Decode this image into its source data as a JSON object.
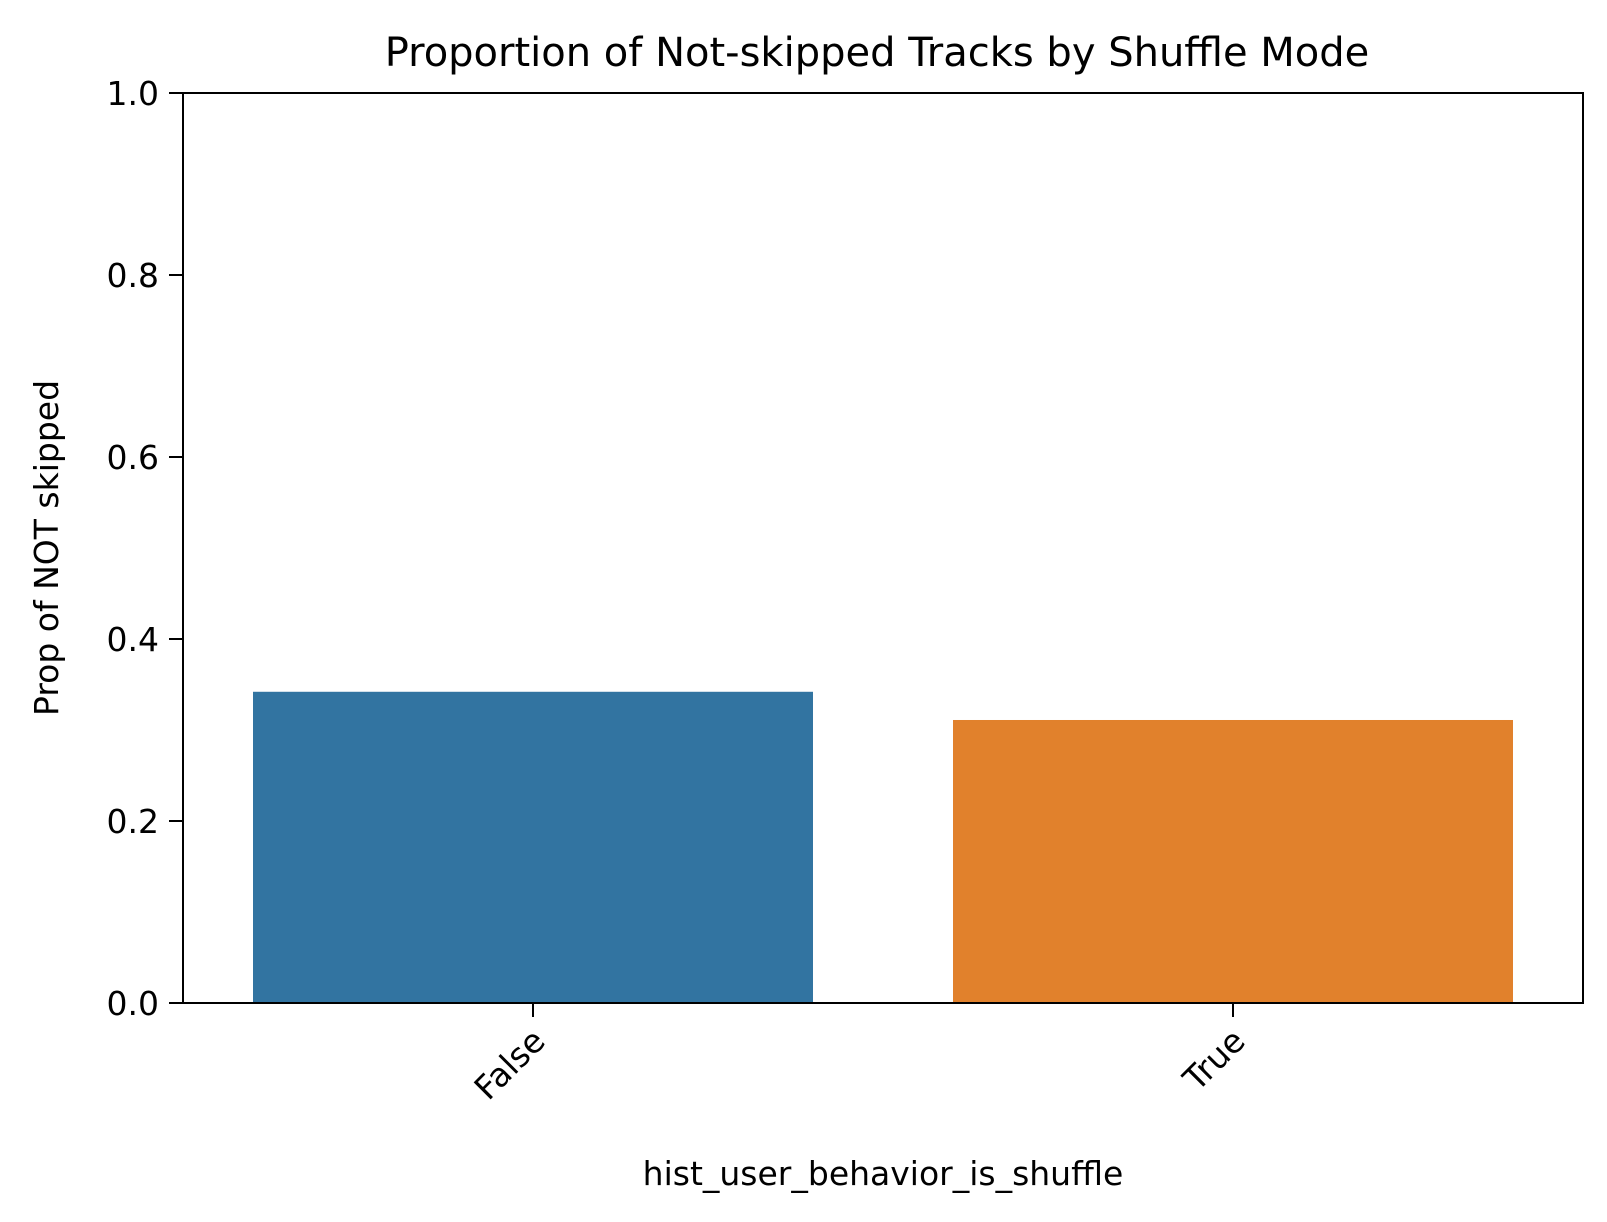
{
  "chart_data": {
    "type": "bar",
    "title": "Proportion of Not-skipped Tracks by Shuffle Mode",
    "xlabel": "hist_user_behavior_is_shuffle",
    "ylabel": "Prop of NOT skipped",
    "categories": [
      "False",
      "True"
    ],
    "values": [
      0.342,
      0.311
    ],
    "colors": [
      "#3274a1",
      "#e1812c"
    ],
    "ylim": [
      0,
      1.0
    ],
    "yticks": [
      0.0,
      0.2,
      0.4,
      0.6,
      0.8,
      1.0
    ],
    "ytick_labels": [
      "0.0",
      "0.2",
      "0.4",
      "0.6",
      "0.8",
      "1.0"
    ],
    "grid": false,
    "legend": "none"
  }
}
